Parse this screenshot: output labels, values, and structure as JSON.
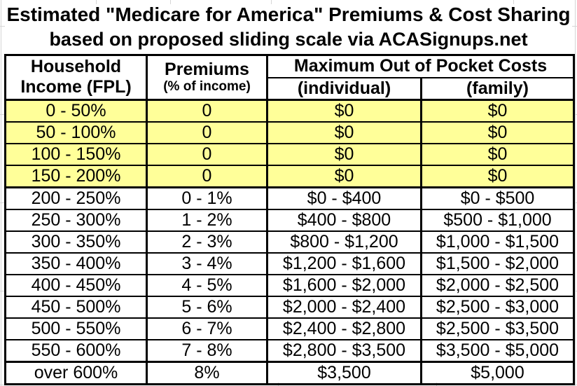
{
  "title": {
    "line1": "Estimated \"Medicare for America\" Premiums & Cost Sharing",
    "line2": "based on proposed sliding scale via ACASignups.net"
  },
  "table": {
    "headers": {
      "income_line1": "Household",
      "income_line2": "Income (FPL)",
      "premiums": "Premiums",
      "premiums_sub": "(% of income)",
      "moop": "Maximum Out of Pocket Costs",
      "individual": "(individual)",
      "family": "(family)"
    },
    "rows": [
      {
        "income": "0 - 50%",
        "premium": "0",
        "individual": "$0",
        "family": "$0",
        "highlight": true
      },
      {
        "income": "50 - 100%",
        "premium": "0",
        "individual": "$0",
        "family": "$0",
        "highlight": true
      },
      {
        "income": "100 - 150%",
        "premium": "0",
        "individual": "$0",
        "family": "$0",
        "highlight": true
      },
      {
        "income": "150 - 200%",
        "premium": "0",
        "individual": "$0",
        "family": "$0",
        "highlight": true
      },
      {
        "income": "200 - 250%",
        "premium": "0 - 1%",
        "individual": "$0 - $400",
        "family": "$0 - $500",
        "thick_top": true
      },
      {
        "income": "250 - 300%",
        "premium": "1 - 2%",
        "individual": "$400 - $800",
        "family": "$500 - $1,000"
      },
      {
        "income": "300 - 350%",
        "premium": "2 - 3%",
        "individual": "$800 - $1,200",
        "family": "$1,000 - $1,500"
      },
      {
        "income": "350 - 400%",
        "premium": "3 - 4%",
        "individual": "$1,200 - $1,600",
        "family": "$1,500 - $2,000"
      },
      {
        "income": "400 - 450%",
        "premium": "4 - 5%",
        "individual": "$1,600 - $2,000",
        "family": "$2,000 - $2,500"
      },
      {
        "income": "450 - 500%",
        "premium": "5 - 6%",
        "individual": "$2,000 - $2,400",
        "family": "$2,500 - $3,000"
      },
      {
        "income": "500 - 550%",
        "premium": "6 - 7%",
        "individual": "$2,400 - $2,800",
        "family": "$2,500 - $3,500"
      },
      {
        "income": "550 - 600%",
        "premium": "7 - 8%",
        "individual": "$2,800 - $3,500",
        "family": "$3,500 - $5,000"
      },
      {
        "income": "over 600%",
        "premium": "8%",
        "individual": "$3,500",
        "family": "$5,000",
        "thick_top": true
      }
    ]
  },
  "colors": {
    "highlight_yellow": "#FFFF99",
    "border_black": "#000000",
    "faint_gridline_gray": "#d6d6d6"
  },
  "chart_data": {
    "type": "table",
    "title": "Estimated \"Medicare for America\" Premiums & Cost Sharing based on proposed sliding scale via ACASignups.net",
    "columns": [
      "Household Income (FPL)",
      "Premiums (% of income)",
      "Maximum Out of Pocket Costs (individual)",
      "Maximum Out of Pocket Costs (family)"
    ],
    "rows": [
      [
        "0 - 50%",
        "0",
        "$0",
        "$0"
      ],
      [
        "50 - 100%",
        "0",
        "$0",
        "$0"
      ],
      [
        "100 - 150%",
        "0",
        "$0",
        "$0"
      ],
      [
        "150 - 200%",
        "0",
        "$0",
        "$0"
      ],
      [
        "200 - 250%",
        "0 - 1%",
        "$0 - $400",
        "$0 - $500"
      ],
      [
        "250 - 300%",
        "1 - 2%",
        "$400 - $800",
        "$500 - $1,000"
      ],
      [
        "300 - 350%",
        "2 - 3%",
        "$800 - $1,200",
        "$1,000 - $1,500"
      ],
      [
        "350 - 400%",
        "3 - 4%",
        "$1,200 - $1,600",
        "$1,500 - $2,000"
      ],
      [
        "400 - 450%",
        "4 - 5%",
        "$1,600 - $2,000",
        "$2,000 - $2,500"
      ],
      [
        "450 - 500%",
        "5 - 6%",
        "$2,000 - $2,400",
        "$2,500 - $3,000"
      ],
      [
        "500 - 550%",
        "6 - 7%",
        "$2,400 - $2,800",
        "$2,500 - $3,500"
      ],
      [
        "550 - 600%",
        "7 - 8%",
        "$2,800 - $3,500",
        "$3,500 - $5,000"
      ],
      [
        "over 600%",
        "8%",
        "$3,500",
        "$5,000"
      ]
    ],
    "highlighted_row_indices": [
      0,
      1,
      2,
      3
    ],
    "highlight_color": "#FFFF99",
    "layout": "bordered grid table, thick black section borders, centered text"
  }
}
